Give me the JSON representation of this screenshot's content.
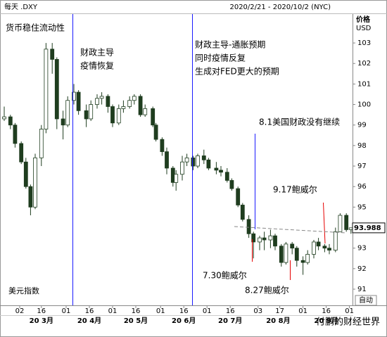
{
  "chart_data": {
    "type": "candlestick",
    "title": "每天 .DXY",
    "date_range": "2020/2/21 - 2020/10/2 (NYC)",
    "y_label": [
      "价格",
      "USD"
    ],
    "series_label": "美元指数",
    "last_price": 93.988,
    "auto_label": "自动",
    "watermark": "付鹏的财经世界",
    "up_color": "#ffffff",
    "down_color": "#1f3d1f",
    "edge_color": "#1f3d1f",
    "x": [
      "2020-02-21",
      "2020-02-25",
      "2020-02-28",
      "2020-03-03",
      "2020-03-06",
      "2020-03-09",
      "2020-03-12",
      "2020-03-16",
      "2020-03-19",
      "2020-03-23",
      "2020-03-26",
      "2020-03-30",
      "2020-04-02",
      "2020-04-06",
      "2020-04-09",
      "2020-04-14",
      "2020-04-17",
      "2020-04-21",
      "2020-04-24",
      "2020-04-28",
      "2020-05-01",
      "2020-05-05",
      "2020-05-08",
      "2020-05-12",
      "2020-05-15",
      "2020-05-19",
      "2020-05-22",
      "2020-05-27",
      "2020-05-29",
      "2020-06-02",
      "2020-06-05",
      "2020-06-09",
      "2020-06-11",
      "2020-06-15",
      "2020-06-18",
      "2020-06-22",
      "2020-06-25",
      "2020-06-29",
      "2020-07-02",
      "2020-07-07",
      "2020-07-10",
      "2020-07-14",
      "2020-07-17",
      "2020-07-21",
      "2020-07-24",
      "2020-07-28",
      "2020-07-31",
      "2020-08-04",
      "2020-08-07",
      "2020-08-11",
      "2020-08-14",
      "2020-08-18",
      "2020-08-21",
      "2020-08-25",
      "2020-08-28",
      "2020-09-01",
      "2020-09-04",
      "2020-09-08",
      "2020-09-11",
      "2020-09-15",
      "2020-09-18",
      "2020-09-22",
      "2020-09-25",
      "2020-09-29",
      "2020-10-02"
    ],
    "open": [
      99.3,
      99.4,
      99.0,
      98.1,
      97.2,
      96.0,
      95.0,
      97.4,
      98.8,
      102.7,
      102.2,
      99.3,
      99.0,
      100.2,
      100.6,
      99.7,
      99.3,
      100.0,
      100.3,
      100.4,
      99.9,
      99.1,
      99.8,
      99.9,
      100.2,
      100.4,
      99.5,
      99.8,
      99.0,
      98.3,
      97.7,
      96.9,
      96.2,
      96.6,
      97.2,
      97.4,
      97.0,
      97.5,
      97.3,
      96.9,
      96.8,
      96.7,
      96.3,
      95.9,
      95.1,
      94.4,
      93.7,
      93.3,
      93.5,
      93.4,
      93.6,
      93.1,
      92.3,
      93.2,
      93.0,
      92.4,
      92.3,
      92.7,
      93.3,
      93.1,
      93.0,
      92.9,
      93.8,
      94.6,
      93.9
    ],
    "high": [
      99.9,
      99.5,
      99.1,
      98.2,
      97.4,
      96.1,
      97.6,
      99.0,
      103.0,
      103.0,
      102.3,
      99.7,
      100.4,
      101.0,
      100.7,
      100.0,
      100.2,
      100.5,
      100.6,
      100.5,
      100.0,
      100.0,
      100.2,
      100.4,
      100.5,
      100.5,
      100.0,
      99.9,
      99.1,
      98.4,
      97.9,
      97.0,
      96.8,
      97.5,
      97.6,
      97.5,
      97.6,
      97.8,
      97.4,
      97.2,
      97.0,
      96.9,
      96.4,
      96.0,
      95.2,
      94.6,
      93.8,
      93.6,
      93.8,
      93.9,
      93.7,
      93.2,
      93.3,
      93.3,
      93.1,
      92.6,
      92.9,
      93.4,
      93.5,
      93.2,
      93.2,
      94.0,
      94.7,
      94.7,
      94.0
    ],
    "low": [
      99.2,
      98.8,
      97.9,
      97.1,
      95.9,
      94.6,
      94.9,
      97.0,
      98.6,
      101.5,
      98.8,
      98.3,
      98.9,
      100.0,
      99.5,
      98.9,
      99.2,
      99.8,
      100.0,
      99.6,
      98.9,
      99.0,
      99.6,
      99.8,
      100.0,
      99.4,
      99.4,
      98.9,
      98.2,
      97.5,
      96.6,
      96.0,
      95.8,
      96.3,
      97.0,
      96.8,
      96.9,
      97.1,
      96.8,
      96.6,
      96.5,
      96.2,
      95.8,
      95.0,
      94.3,
      93.5,
      92.5,
      92.9,
      92.9,
      93.0,
      92.9,
      92.1,
      92.2,
      92.7,
      92.1,
      91.7,
      92.2,
      92.5,
      92.9,
      92.8,
      92.7,
      92.8,
      93.8,
      93.8,
      93.7
    ],
    "close": [
      99.4,
      99.0,
      98.1,
      97.2,
      96.0,
      95.0,
      97.4,
      98.8,
      102.7,
      102.2,
      99.3,
      99.0,
      100.2,
      100.6,
      99.7,
      99.3,
      100.0,
      100.3,
      100.4,
      99.9,
      99.1,
      99.8,
      99.9,
      100.2,
      100.4,
      99.5,
      99.8,
      99.0,
      98.3,
      97.7,
      96.9,
      96.2,
      96.6,
      97.2,
      97.4,
      97.0,
      97.5,
      97.3,
      96.9,
      96.8,
      96.7,
      96.3,
      95.9,
      95.1,
      94.4,
      93.7,
      93.3,
      93.5,
      93.4,
      93.6,
      93.1,
      92.3,
      93.2,
      93.0,
      92.4,
      92.3,
      92.7,
      93.3,
      93.1,
      93.0,
      92.9,
      93.8,
      94.6,
      93.9,
      93.99
    ],
    "xlim": [
      "2020-02-21",
      "2020-10-03"
    ],
    "xticks": [
      {
        "value": "2020-03-02",
        "label": "02"
      },
      {
        "value": "2020-03-16",
        "label": "16"
      },
      {
        "value": "2020-04-01",
        "label": "01"
      },
      {
        "value": "2020-04-16",
        "label": "16"
      },
      {
        "value": "2020-05-01",
        "label": "01"
      },
      {
        "value": "2020-05-16",
        "label": "16"
      },
      {
        "value": "2020-06-01",
        "label": "01"
      },
      {
        "value": "2020-06-16",
        "label": "16"
      },
      {
        "value": "2020-07-01",
        "label": "01"
      },
      {
        "value": "2020-07-16",
        "label": "16"
      },
      {
        "value": "2020-08-03",
        "label": "03"
      },
      {
        "value": "2020-08-17",
        "label": "17"
      },
      {
        "value": "2020-09-01",
        "label": "01"
      },
      {
        "value": "2020-09-16",
        "label": "16"
      },
      {
        "value": "2020-10-01",
        "label": "01"
      }
    ],
    "month_labels": [
      {
        "value": "2020-03-16",
        "label": "20 3月"
      },
      {
        "value": "2020-04-16",
        "label": "20 4月"
      },
      {
        "value": "2020-05-16",
        "label": "20 5月"
      },
      {
        "value": "2020-06-16",
        "label": "20 6月"
      },
      {
        "value": "2020-07-16",
        "label": "20 7月"
      },
      {
        "value": "2020-08-16",
        "label": "20 8月"
      },
      {
        "value": "2020-09-16",
        "label": "20 9月"
      }
    ],
    "ylim": [
      90.28,
      104.34
    ],
    "yticks": [
      91,
      92,
      93,
      94,
      95,
      96,
      97,
      98,
      99,
      100,
      101,
      102,
      103
    ],
    "annotations": [
      {
        "text": "货币稳住流动性",
        "color": "#1a1aff"
      },
      {
        "text": "财政主导",
        "color": "#1a1aff"
      },
      {
        "text": "疫情恢复",
        "color": "#1a1aff"
      },
      {
        "text": "财政主导-通胀预期",
        "color": "#1a1aff"
      },
      {
        "text": "同时疫情反复",
        "color": "#1a1aff"
      },
      {
        "text": "生成对FED更大的预期",
        "color": "#1a1aff"
      },
      {
        "text": "8.1美国财政没有继续",
        "color": "#1a1aff"
      },
      {
        "text": "9.17鲍威尔",
        "color": "#e60000"
      },
      {
        "text": "7.30鲍威尔",
        "color": "#e60000"
      },
      {
        "text": "8.27鲍威尔",
        "color": "#e60000"
      }
    ]
  }
}
